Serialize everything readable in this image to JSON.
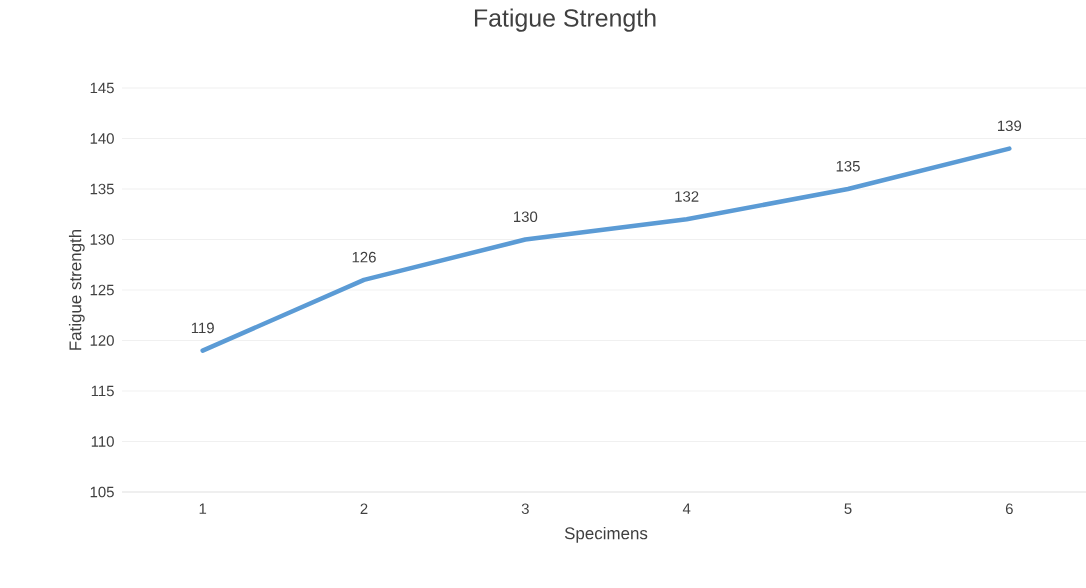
{
  "chart_data": {
    "type": "line",
    "title": "Fatigue Strength",
    "xlabel": "Specimens",
    "ylabel": "Fatigue strength",
    "categories": [
      "1",
      "2",
      "3",
      "4",
      "5",
      "6"
    ],
    "values": [
      119,
      126,
      130,
      132,
      135,
      139
    ],
    "color": "#5b9bd5",
    "ylim": [
      105,
      145
    ],
    "yticks": [
      105,
      110,
      115,
      120,
      125,
      130,
      135,
      140,
      145
    ],
    "grid": "y",
    "data_labels": true,
    "marker": "none",
    "line_style": "solid"
  }
}
